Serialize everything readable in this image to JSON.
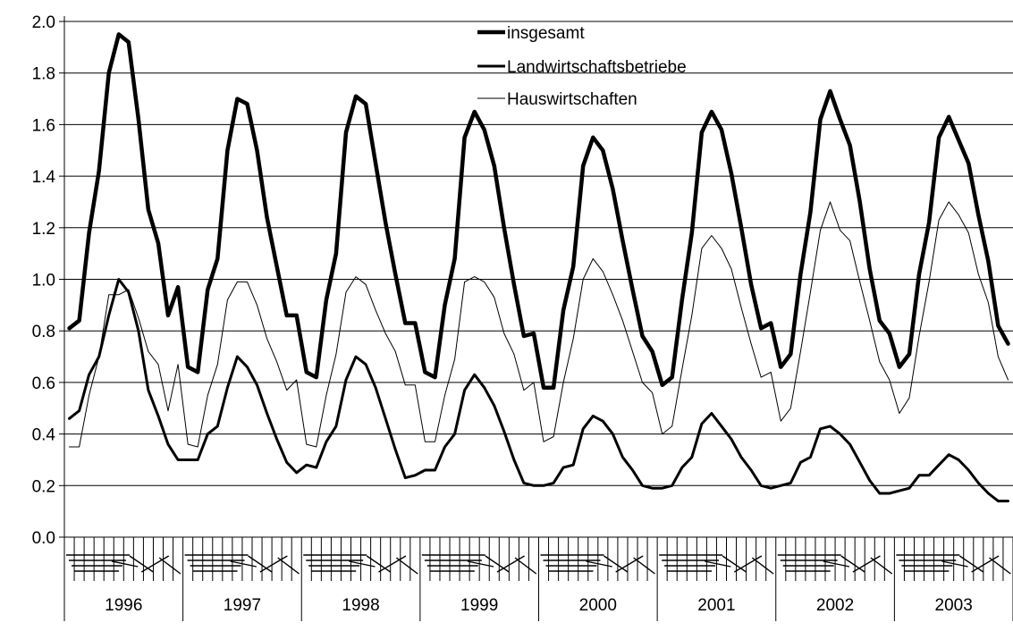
{
  "chart_data": {
    "type": "line",
    "title": "",
    "xlabel": "",
    "ylabel": "",
    "ylim": [
      0,
      2.0
    ],
    "y_ticks": [
      "0.0",
      "0.2",
      "0.4",
      "0.6",
      "0.8",
      "1.0",
      "1.2",
      "1.4",
      "1.6",
      "1.8",
      "2.0"
    ],
    "grid": "horizontal",
    "legend_position": "top-center",
    "x_period": "monthly",
    "years": [
      "1996",
      "1997",
      "1998",
      "1999",
      "2000",
      "2001",
      "2002",
      "2003"
    ],
    "series": [
      {
        "name": "insgesamt",
        "style": "thick",
        "values": [
          0.81,
          0.84,
          1.18,
          1.42,
          1.8,
          1.95,
          1.92,
          1.62,
          1.27,
          1.14,
          0.86,
          0.97,
          0.66,
          0.64,
          0.96,
          1.08,
          1.5,
          1.7,
          1.68,
          1.5,
          1.24,
          1.05,
          0.86,
          0.86,
          0.64,
          0.62,
          0.92,
          1.1,
          1.57,
          1.71,
          1.68,
          1.45,
          1.22,
          1.02,
          0.83,
          0.83,
          0.64,
          0.62,
          0.9,
          1.08,
          1.55,
          1.65,
          1.58,
          1.44,
          1.2,
          0.98,
          0.78,
          0.79,
          0.58,
          0.58,
          0.88,
          1.05,
          1.44,
          1.55,
          1.5,
          1.35,
          1.15,
          0.96,
          0.78,
          0.72,
          0.59,
          0.62,
          0.92,
          1.18,
          1.57,
          1.65,
          1.58,
          1.41,
          1.2,
          0.98,
          0.81,
          0.83,
          0.66,
          0.71,
          1.02,
          1.26,
          1.62,
          1.73,
          1.62,
          1.52,
          1.3,
          1.04,
          0.84,
          0.79,
          0.66,
          0.71,
          1.02,
          1.22,
          1.55,
          1.63,
          1.54,
          1.45,
          1.25,
          1.07,
          0.82,
          0.75
        ]
      },
      {
        "name": "Landwirtschaftsbetriebe",
        "style": "medium",
        "values": [
          0.46,
          0.49,
          0.63,
          0.7,
          0.86,
          1.0,
          0.95,
          0.8,
          0.57,
          0.47,
          0.36,
          0.3,
          0.3,
          0.3,
          0.4,
          0.43,
          0.58,
          0.7,
          0.66,
          0.59,
          0.48,
          0.38,
          0.29,
          0.25,
          0.28,
          0.27,
          0.37,
          0.43,
          0.61,
          0.7,
          0.67,
          0.58,
          0.46,
          0.34,
          0.23,
          0.24,
          0.26,
          0.26,
          0.35,
          0.4,
          0.57,
          0.63,
          0.58,
          0.51,
          0.41,
          0.3,
          0.21,
          0.2,
          0.2,
          0.21,
          0.27,
          0.28,
          0.42,
          0.47,
          0.45,
          0.4,
          0.31,
          0.26,
          0.2,
          0.19,
          0.19,
          0.2,
          0.27,
          0.31,
          0.44,
          0.48,
          0.43,
          0.38,
          0.31,
          0.26,
          0.2,
          0.19,
          0.2,
          0.21,
          0.29,
          0.31,
          0.42,
          0.43,
          0.4,
          0.36,
          0.29,
          0.22,
          0.17,
          0.17,
          0.18,
          0.19,
          0.24,
          0.24,
          0.28,
          0.32,
          0.3,
          0.26,
          0.21,
          0.17,
          0.14,
          0.14
        ]
      },
      {
        "name": "Hauswirtschaften",
        "style": "thin",
        "values": [
          0.35,
          0.35,
          0.55,
          0.7,
          0.94,
          0.94,
          0.96,
          0.85,
          0.72,
          0.67,
          0.49,
          0.67,
          0.36,
          0.35,
          0.55,
          0.67,
          0.92,
          0.99,
          0.99,
          0.9,
          0.77,
          0.68,
          0.57,
          0.61,
          0.36,
          0.35,
          0.55,
          0.71,
          0.95,
          1.01,
          0.98,
          0.88,
          0.79,
          0.72,
          0.59,
          0.59,
          0.37,
          0.37,
          0.55,
          0.69,
          0.99,
          1.01,
          0.99,
          0.93,
          0.79,
          0.71,
          0.57,
          0.6,
          0.37,
          0.39,
          0.6,
          0.77,
          1.0,
          1.08,
          1.03,
          0.94,
          0.84,
          0.72,
          0.6,
          0.56,
          0.4,
          0.43,
          0.65,
          0.86,
          1.12,
          1.17,
          1.12,
          1.04,
          0.89,
          0.75,
          0.62,
          0.64,
          0.45,
          0.5,
          0.72,
          0.95,
          1.19,
          1.3,
          1.19,
          1.15,
          0.99,
          0.84,
          0.68,
          0.61,
          0.48,
          0.54,
          0.78,
          0.99,
          1.23,
          1.3,
          1.25,
          1.18,
          1.02,
          0.91,
          0.7,
          0.61
        ]
      }
    ]
  }
}
